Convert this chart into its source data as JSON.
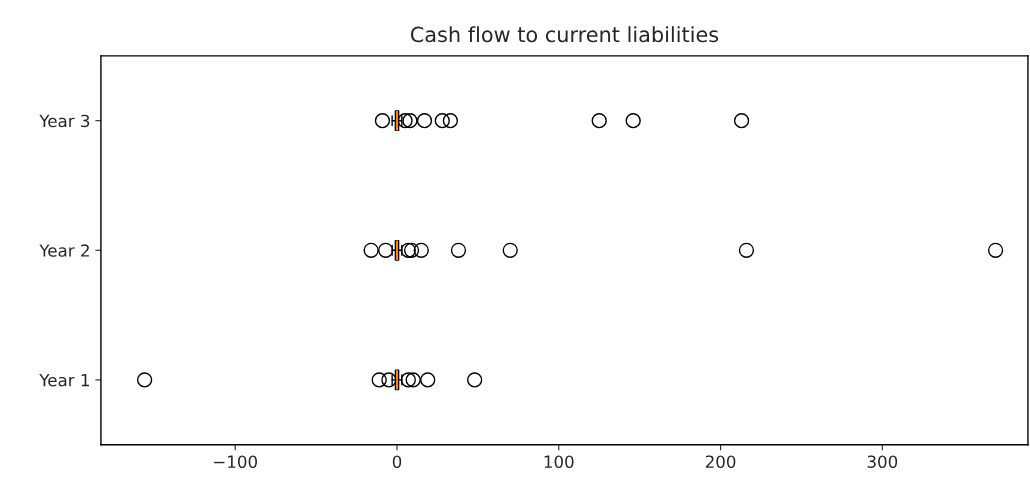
{
  "chart_data": {
    "type": "box",
    "title": "Cash flow to current liabilities",
    "orientation": "horizontal",
    "categories": [
      "Year 3",
      "Year 2",
      "Year 1"
    ],
    "boxes": [
      {
        "low": -3,
        "q1": -1,
        "median": 0,
        "q3": 1,
        "high": 3,
        "outliers": [
          -9,
          5,
          8,
          17,
          28,
          33,
          125,
          146,
          213
        ]
      },
      {
        "low": -3,
        "q1": -1,
        "median": 0,
        "q3": 1,
        "high": 3,
        "outliers": [
          -16,
          -7,
          7,
          9,
          15,
          38,
          70,
          216,
          370
        ]
      },
      {
        "low": -3,
        "q1": -1,
        "median": 0,
        "q3": 1,
        "high": 3,
        "outliers": [
          -156,
          -11,
          -5,
          7,
          10,
          19,
          48
        ]
      }
    ],
    "xlim": [
      -183,
      390
    ],
    "xticks": [
      {
        "value": -100,
        "label": "−100"
      },
      0,
      100,
      200,
      300
    ],
    "grid": false
  }
}
